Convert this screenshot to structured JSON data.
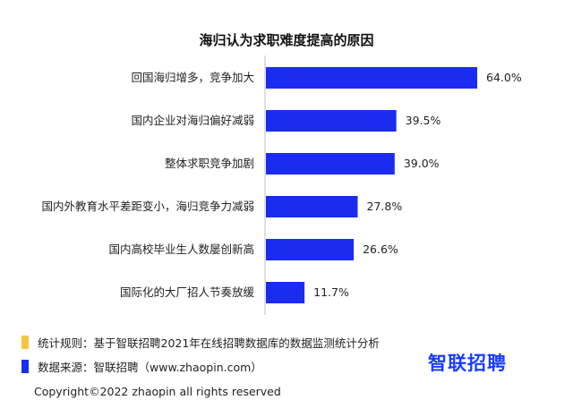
{
  "chart_data": {
    "type": "bar",
    "orientation": "horizontal",
    "title": "海归认为求职难度提高的原因",
    "categories": [
      "回国海归增多，竞争加大",
      "国内企业对海归偏好减弱",
      "整体求职竞争加剧",
      "国内外教育水平差距变小，海归竞争力减弱",
      "国内高校毕业生人数屡创新高",
      "国际化的大厂招人节奏放缓"
    ],
    "values": [
      64.0,
      39.5,
      39.0,
      27.8,
      26.6,
      11.7
    ],
    "value_labels": [
      "64.0%",
      "39.5%",
      "39.0%",
      "27.8%",
      "26.6%",
      "11.7%"
    ],
    "bar_color": "#1a2cf0",
    "xlim": [
      0,
      64.0
    ],
    "grid": false
  },
  "notes": {
    "rule_label": "统计规则：基于智联招聘2021年在线招聘数据库的数据监测统计分析",
    "rule_color": "#f5c542",
    "source_label": "数据来源：智联招聘（www.zhaopin.com）",
    "source_color": "#1a2cf0"
  },
  "logo_text": "智联招聘",
  "copyright": "Copyright©2022 zhaopin all rights reserved"
}
